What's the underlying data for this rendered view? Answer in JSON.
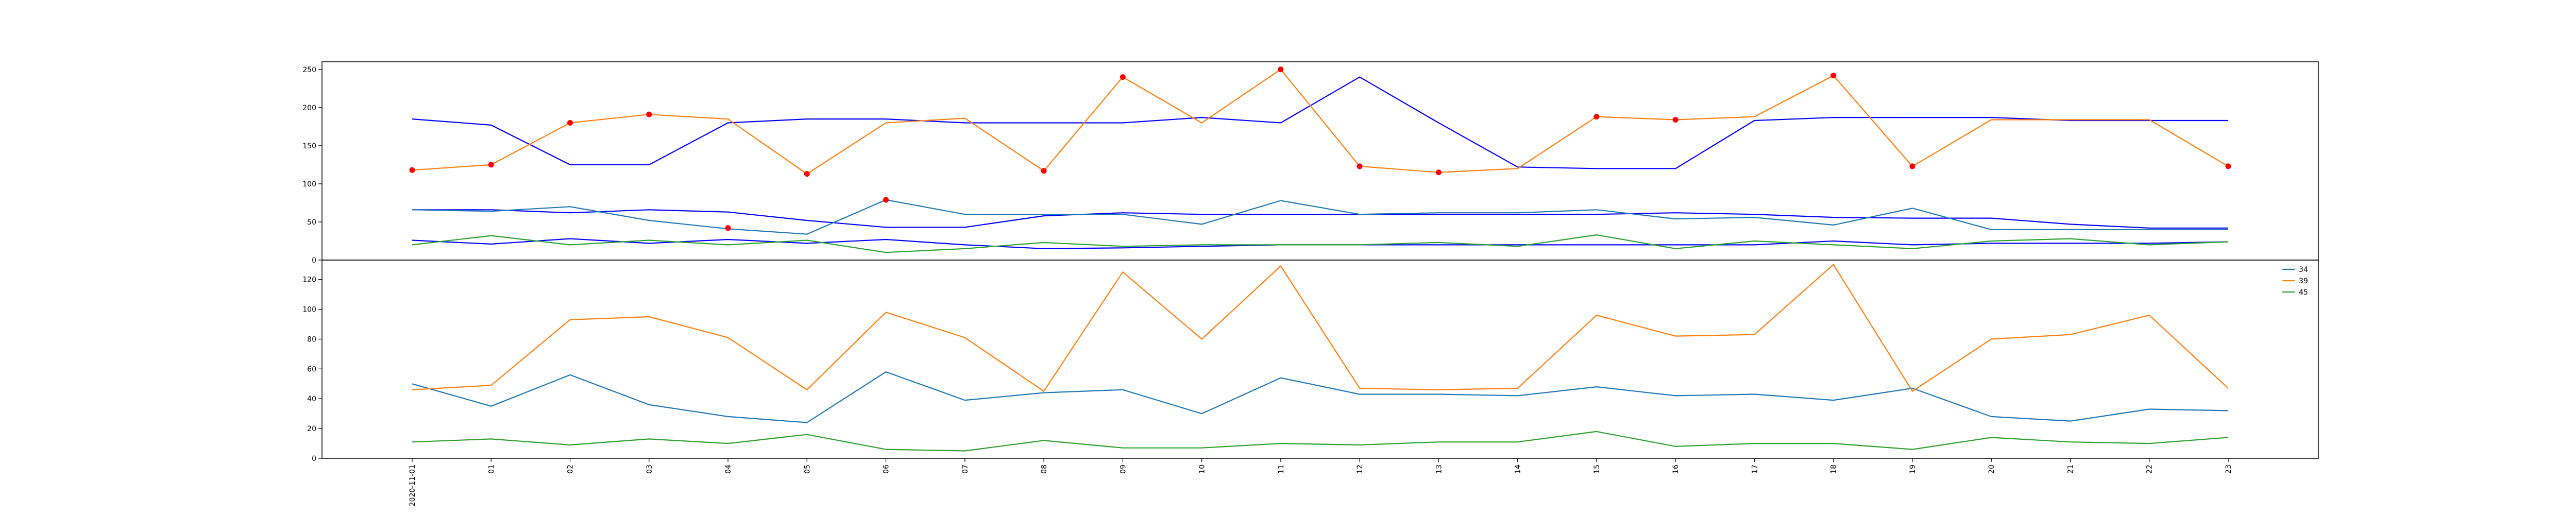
{
  "chart_data": {
    "type": "line",
    "x_ticks": [
      "2020-11-01",
      "01",
      "02",
      "03",
      "04",
      "05",
      "06",
      "07",
      "08",
      "09",
      "10",
      "11",
      "12",
      "13",
      "14",
      "15",
      "16",
      "17",
      "18",
      "19",
      "20",
      "21",
      "22",
      "23"
    ],
    "panels": [
      {
        "ylim": [
          0,
          260
        ],
        "yticks": [
          0,
          50,
          100,
          150,
          200,
          250
        ],
        "series": [
          {
            "color": "#0000ff",
            "values": [
              185,
              177,
              125,
              125,
              180,
              185,
              185,
              180,
              180,
              180,
              187,
              180,
              240,
              180,
              122,
              120,
              120,
              183,
              187,
              187,
              187,
              183,
              183,
              183
            ]
          },
          {
            "color": "#0000ff",
            "values": [
              66,
              66,
              62,
              66,
              63,
              52,
              43,
              43,
              58,
              62,
              60,
              60,
              60,
              60,
              60,
              60,
              62,
              60,
              56,
              55,
              55,
              47,
              42,
              42
            ]
          },
          {
            "color": "#0000ff",
            "values": [
              26,
              21,
              28,
              22,
              27,
              22,
              27,
              20,
              15,
              16,
              18,
              20,
              20,
              20,
              20,
              20,
              20,
              20,
              25,
              20,
              22,
              22,
              22,
              24
            ]
          },
          {
            "color": "#ff7f0e",
            "values": [
              118,
              125,
              180,
              191,
              185,
              113,
              180,
              186,
              117,
              240,
              180,
              250,
              123,
              115,
              120,
              188,
              184,
              188,
              242,
              123,
              184,
              184,
              184,
              123
            ]
          },
          {
            "color": "#1f77b4",
            "values": [
              66,
              64,
              70,
              52,
              41,
              34,
              79,
              60,
              60,
              60,
              47,
              78,
              60,
              62,
              62,
              66,
              54,
              56,
              46,
              68,
              40,
              40,
              40,
              40
            ]
          },
          {
            "color": "#2ca02c",
            "values": [
              20,
              32,
              20,
              26,
              20,
              26,
              10,
              15,
              23,
              18,
              20,
              20,
              20,
              23,
              18,
              33,
              15,
              25,
              20,
              15,
              25,
              28,
              20,
              24
            ]
          }
        ],
        "markers": [
          {
            "color": "#ff0000",
            "x": 0,
            "y": 118
          },
          {
            "color": "#ff0000",
            "x": 1,
            "y": 125
          },
          {
            "color": "#ff0000",
            "x": 2,
            "y": 180
          },
          {
            "color": "#ff0000",
            "x": 3,
            "y": 191
          },
          {
            "color": "#ff0000",
            "x": 5,
            "y": 113
          },
          {
            "color": "#ff0000",
            "x": 8,
            "y": 117
          },
          {
            "color": "#ff0000",
            "x": 9,
            "y": 240
          },
          {
            "color": "#ff0000",
            "x": 11,
            "y": 250
          },
          {
            "color": "#ff0000",
            "x": 12,
            "y": 123
          },
          {
            "color": "#ff0000",
            "x": 13,
            "y": 115
          },
          {
            "color": "#ff0000",
            "x": 15,
            "y": 188
          },
          {
            "color": "#ff0000",
            "x": 16,
            "y": 184
          },
          {
            "color": "#ff0000",
            "x": 18,
            "y": 242
          },
          {
            "color": "#ff0000",
            "x": 19,
            "y": 123
          },
          {
            "color": "#ff0000",
            "x": 23,
            "y": 123
          },
          {
            "color": "#ff0000",
            "x": 4,
            "y": 42
          },
          {
            "color": "#ff0000",
            "x": 6,
            "y": 79
          }
        ]
      },
      {
        "ylim": [
          0,
          133
        ],
        "yticks": [
          0,
          20,
          40,
          60,
          80,
          100,
          120
        ],
        "legend": {
          "location": "top-right"
        },
        "series": [
          {
            "name": "34",
            "color": "#1f77b4",
            "values": [
              50,
              35,
              56,
              36,
              28,
              24,
              58,
              39,
              44,
              46,
              30,
              54,
              43,
              43,
              42,
              48,
              42,
              43,
              39,
              47,
              28,
              25,
              33,
              32
            ]
          },
          {
            "name": "39",
            "color": "#ff7f0e",
            "values": [
              46,
              49,
              93,
              95,
              81,
              46,
              98,
              81,
              45,
              125,
              80,
              129,
              47,
              46,
              47,
              96,
              82,
              83,
              130,
              45,
              80,
              83,
              96,
              47
            ]
          },
          {
            "name": "45",
            "color": "#2ca02c",
            "values": [
              11,
              13,
              9,
              13,
              10,
              16,
              6,
              5,
              12,
              7,
              7,
              10,
              9,
              11,
              11,
              18,
              8,
              10,
              10,
              6,
              14,
              11,
              10,
              14
            ]
          }
        ]
      }
    ]
  }
}
